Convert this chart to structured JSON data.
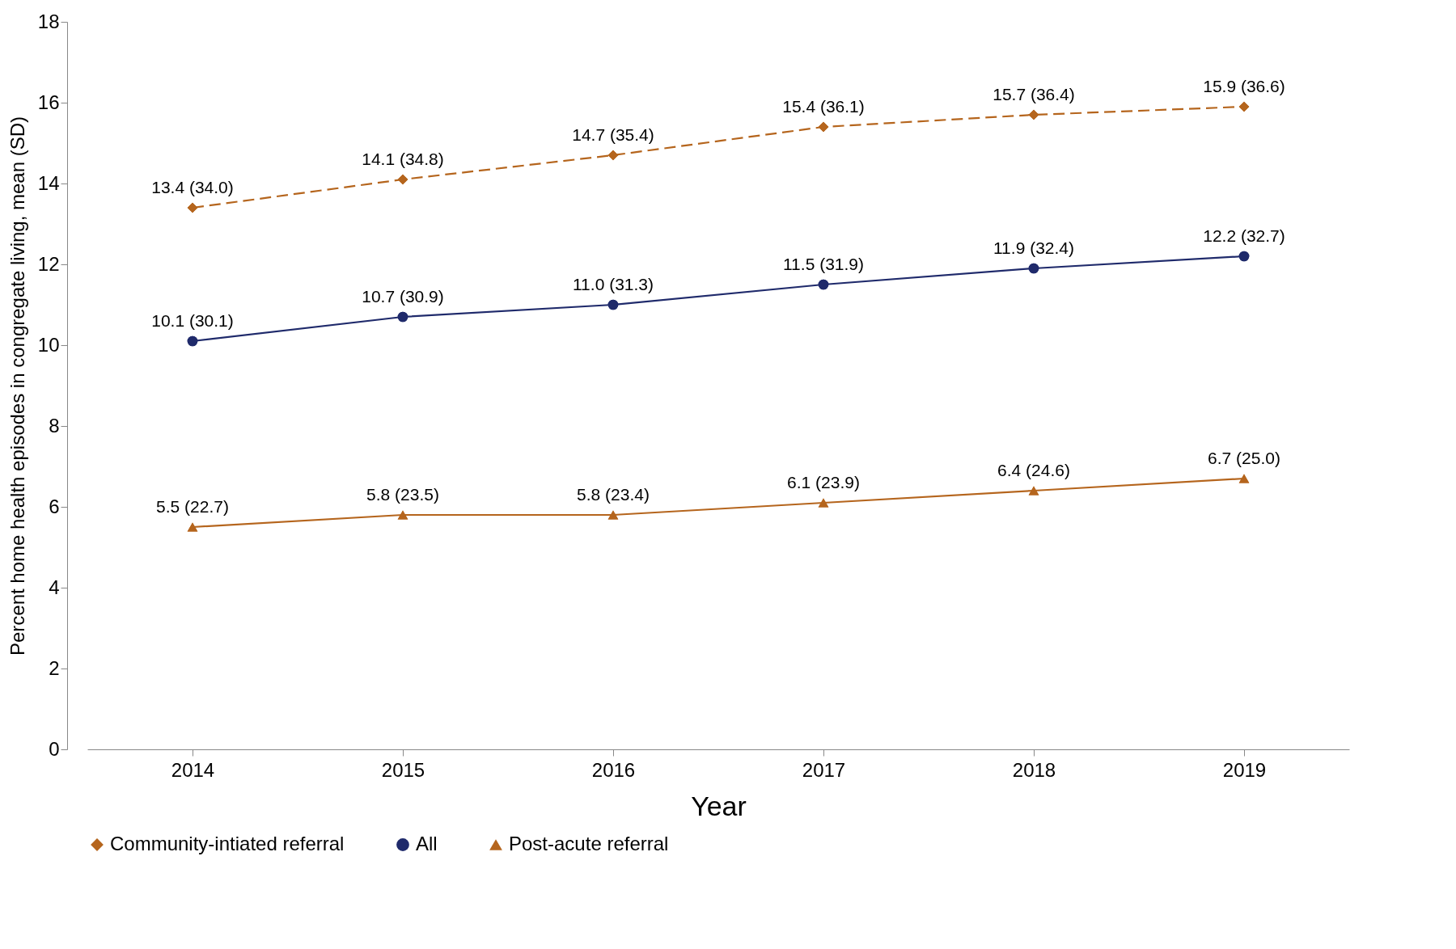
{
  "chart_data": {
    "type": "line",
    "xlabel": "Year",
    "ylabel": "Percent home health episodes in congregate living, mean (SD)",
    "categories": [
      "2014",
      "2015",
      "2016",
      "2017",
      "2018",
      "2019"
    ],
    "series": [
      {
        "name": "Community-intiated referral",
        "color": "#b5651d",
        "marker": "diamond",
        "line_style": "dashed",
        "values": [
          13.4,
          14.1,
          14.7,
          15.4,
          15.7,
          15.9
        ],
        "value_labels": [
          "13.4 (34.0)",
          "14.1 (34.8)",
          "14.7 (35.4)",
          "15.4 (36.1)",
          "15.7 (36.4)",
          "15.9 (36.6)"
        ]
      },
      {
        "name": "All",
        "color": "#1f2a6b",
        "marker": "circle",
        "line_style": "solid",
        "values": [
          10.1,
          10.7,
          11.0,
          11.5,
          11.9,
          12.2
        ],
        "value_labels": [
          "10.1 (30.1)",
          "10.7 (30.9)",
          "11.0 (31.3)",
          "11.5 (31.9)",
          "11.9 (32.4)",
          "12.2 (32.7)"
        ]
      },
      {
        "name": "Post-acute referral",
        "color": "#b5651d",
        "marker": "triangle",
        "line_style": "solid",
        "values": [
          5.5,
          5.8,
          5.8,
          6.1,
          6.4,
          6.7
        ],
        "value_labels": [
          "5.5 (22.7)",
          "5.8 (23.5)",
          "5.8 (23.4)",
          "6.1 (23.9)",
          "6.4 (24.6)",
          "6.7 (25.0)"
        ]
      }
    ],
    "ylim": [
      0,
      18
    ],
    "yticks": [
      0,
      2,
      4,
      6,
      8,
      10,
      12,
      14,
      16,
      18
    ],
    "grid": false,
    "legend": "bottom"
  }
}
